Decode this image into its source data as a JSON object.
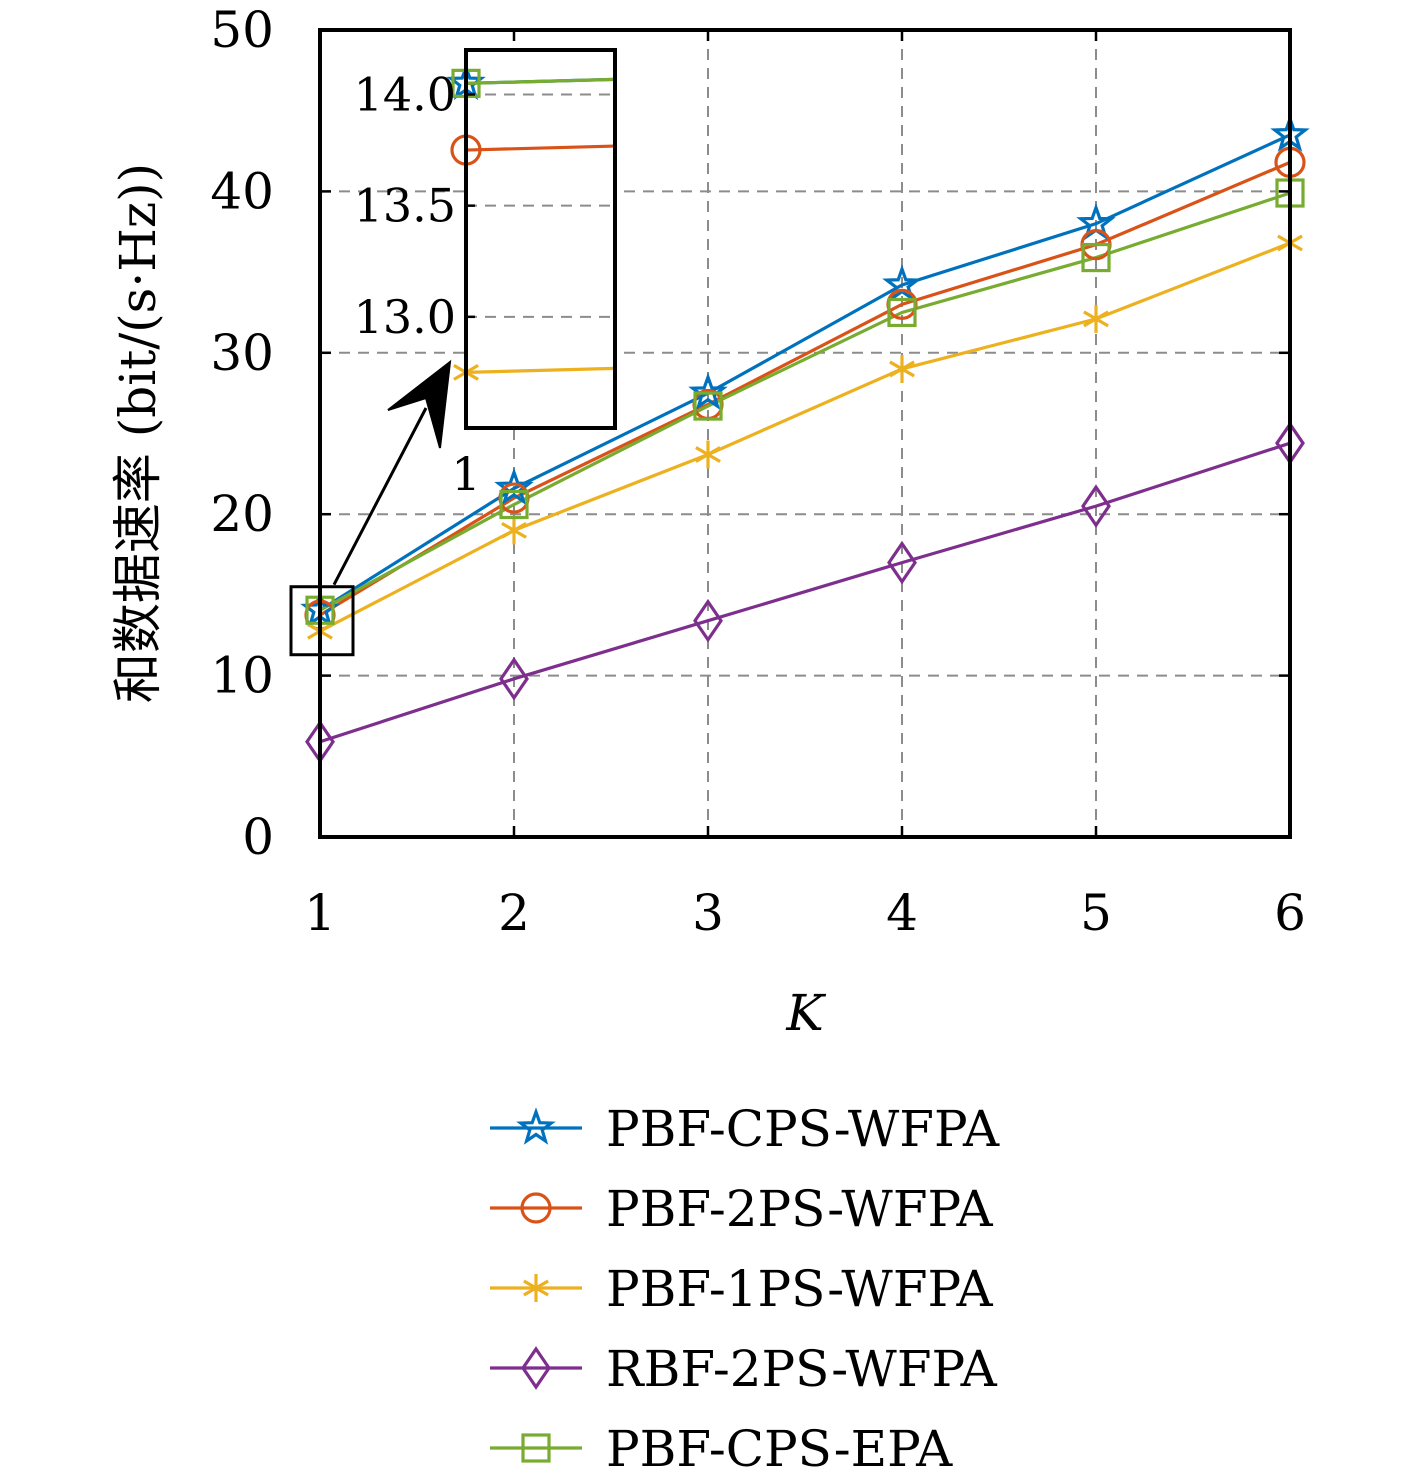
{
  "chart_data": {
    "type": "line",
    "xlabel": "K",
    "ylabel": "和数据速率 (bit/(s·Hz))",
    "xlim": [
      1,
      6
    ],
    "ylim": [
      0,
      50
    ],
    "xticks": [
      1,
      2,
      3,
      4,
      5,
      6
    ],
    "yticks": [
      0,
      10,
      20,
      30,
      40,
      50
    ],
    "grid": true,
    "legend_position": "bottom, below plot",
    "series": [
      {
        "name": "PBF-CPS-WFPA",
        "color": "#0072BD",
        "marker": "star",
        "x": [
          1,
          2,
          3,
          4,
          5,
          6
        ],
        "y": [
          14.05,
          21.6,
          27.5,
          34.2,
          38.0,
          43.5
        ]
      },
      {
        "name": "PBF-2PS-WFPA",
        "color": "#D95319",
        "marker": "circle",
        "x": [
          1,
          2,
          3,
          4,
          5,
          6
        ],
        "y": [
          13.75,
          21.0,
          26.8,
          33.0,
          36.7,
          41.8
        ]
      },
      {
        "name": "PBF-1PS-WFPA",
        "color": "#EDB120",
        "marker": "asterisk",
        "x": [
          1,
          2,
          3,
          4,
          5,
          6
        ],
        "y": [
          12.75,
          19.0,
          23.7,
          29.0,
          32.1,
          36.8
        ]
      },
      {
        "name": "RBF-2PS-WFPA",
        "color": "#7E2F8E",
        "marker": "diamond",
        "x": [
          1,
          2,
          3,
          4,
          5,
          6
        ],
        "y": [
          5.9,
          9.8,
          13.4,
          17.0,
          20.5,
          24.4
        ]
      },
      {
        "name": "PBF-CPS-EPA",
        "color": "#77AC30",
        "marker": "square",
        "x": [
          1,
          2,
          3,
          4,
          5,
          6
        ],
        "y": [
          14.05,
          20.6,
          26.7,
          32.5,
          35.9,
          39.9
        ]
      }
    ],
    "inset": {
      "xlim": [
        1,
        1.02
      ],
      "ylim": [
        12.5,
        14.2
      ],
      "yticks": [
        13.0,
        13.5,
        14.0
      ],
      "ytick_labels": [
        "13.0",
        "13.5",
        "14.0"
      ],
      "xtick_labels": [
        "1"
      ]
    }
  }
}
